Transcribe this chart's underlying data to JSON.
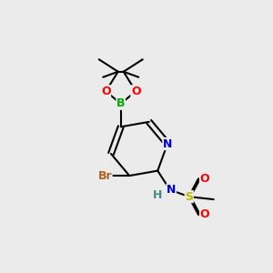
{
  "bg_color": "#ebebeb",
  "bond_color": "#000000",
  "bond_lw": 1.5,
  "atoms": {
    "B": {
      "color": "#00aa00",
      "fontsize": 9,
      "fontweight": "bold"
    },
    "O": {
      "color": "#ff0000",
      "fontsize": 9,
      "fontweight": "bold"
    },
    "N": {
      "color": "#0000ff",
      "fontsize": 9,
      "fontweight": "bold"
    },
    "S": {
      "color": "#cccc00",
      "fontsize": 9,
      "fontweight": "bold"
    },
    "Br": {
      "color": "#a05a00",
      "fontsize": 9,
      "fontweight": "bold"
    },
    "H": {
      "color": "#558888",
      "fontsize": 9,
      "fontweight": "bold"
    },
    "C": {
      "color": "#000000",
      "fontsize": 8,
      "fontweight": "normal"
    }
  }
}
